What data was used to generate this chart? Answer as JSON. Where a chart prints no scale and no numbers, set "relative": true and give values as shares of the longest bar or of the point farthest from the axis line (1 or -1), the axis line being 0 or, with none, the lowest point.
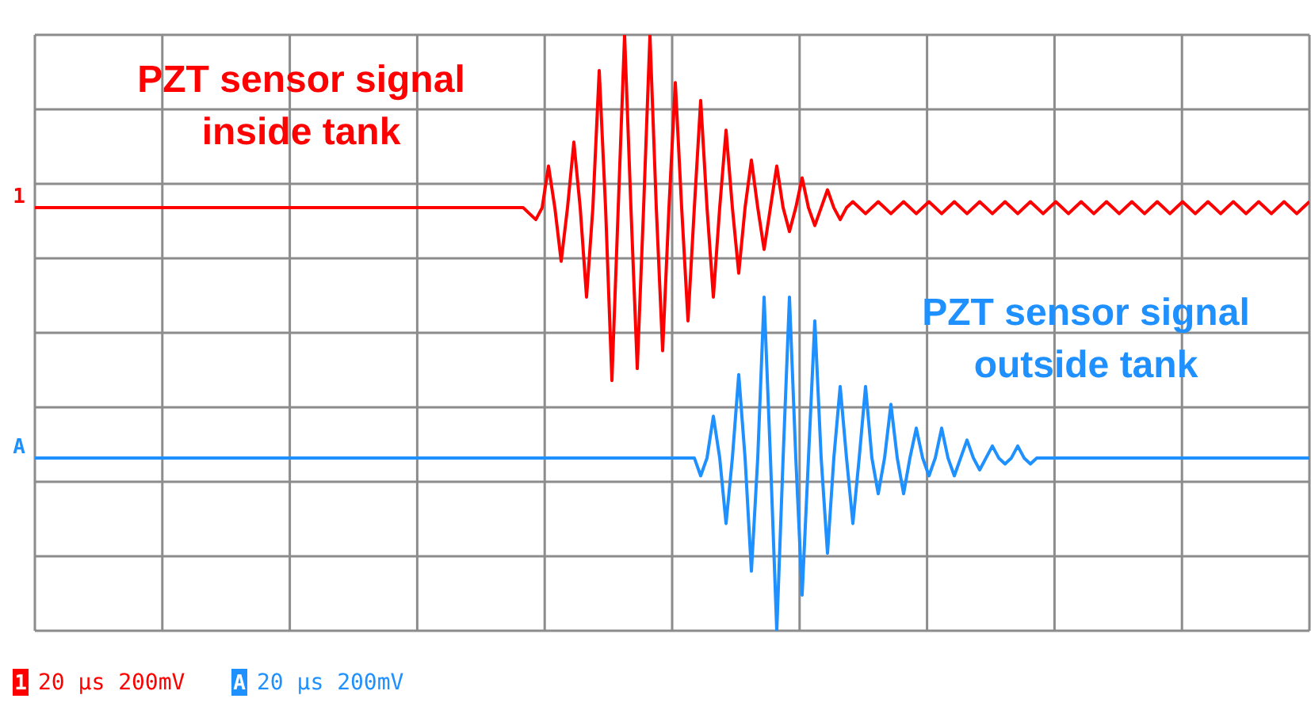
{
  "chart_data": {
    "type": "line",
    "relative": true,
    "grid": true,
    "legend": "left",
    "marker": "none",
    "line_style": "solid",
    "annotations": [
      "PZT sensor signal\ninside tank",
      "PZT sensor signal\noutside tank",
      "20 μs 200mV",
      "20 μs 200mV"
    ],
    "categories": [
      null,
      null,
      null,
      null,
      null,
      null,
      null,
      null,
      null,
      null,
      null,
      null,
      null,
      null,
      null,
      null,
      null,
      null,
      null,
      null,
      null,
      null,
      null,
      null,
      null,
      null,
      null,
      null,
      null,
      null,
      null,
      null,
      null,
      null,
      null,
      null,
      null,
      null,
      null,
      null,
      null,
      null,
      null,
      null,
      null,
      null,
      null,
      null,
      null,
      null,
      null,
      null,
      null,
      null,
      null,
      null,
      null,
      null,
      null,
      null,
      null,
      null,
      null,
      null,
      null,
      null,
      null,
      null,
      null,
      null,
      null,
      null,
      null,
      null,
      null,
      null,
      null,
      null,
      null,
      null,
      null,
      null,
      null,
      null,
      null,
      null,
      null,
      null,
      null,
      null,
      null,
      null,
      null,
      null,
      null,
      null,
      null,
      null,
      null,
      null,
      null,
      null,
      null,
      null,
      null,
      null,
      null,
      null,
      null,
      null,
      null,
      null,
      null,
      null,
      null,
      null,
      null,
      null,
      null,
      null,
      null,
      null,
      null,
      null,
      null,
      null,
      null,
      null,
      null,
      null,
      null,
      null,
      null,
      null,
      null,
      null,
      null,
      null,
      null,
      null,
      null,
      null,
      null,
      null,
      null,
      null,
      null,
      null,
      null,
      null,
      null,
      null,
      null,
      null,
      null,
      null,
      null,
      null,
      null,
      null,
      null,
      null,
      null,
      null,
      null,
      null,
      null,
      null,
      null,
      null,
      null,
      null,
      null,
      null,
      null,
      null,
      null,
      null,
      null,
      null,
      null,
      null,
      null,
      null,
      null,
      null,
      null,
      null,
      null,
      null,
      null,
      null,
      null,
      null,
      null,
      null,
      null,
      null,
      null,
      null,
      null,
      null
    ],
    "series": [
      {
        "name": "1",
        "color": "#ff0000",
        "values": [
          0.71,
          0.71,
          0.71,
          0.71,
          0.71,
          0.71,
          0.71,
          0.71,
          0.71,
          0.71,
          0.71,
          0.71,
          0.71,
          0.71,
          0.71,
          0.71,
          0.71,
          0.71,
          0.71,
          0.71,
          0.71,
          0.71,
          0.71,
          0.71,
          0.71,
          0.71,
          0.71,
          0.71,
          0.71,
          0.71,
          0.71,
          0.71,
          0.71,
          0.71,
          0.71,
          0.71,
          0.71,
          0.71,
          0.71,
          0.71,
          0.71,
          0.71,
          0.71,
          0.71,
          0.71,
          0.71,
          0.71,
          0.71,
          0.71,
          0.71,
          0.71,
          0.71,
          0.71,
          0.71,
          0.71,
          0.71,
          0.71,
          0.71,
          0.71,
          0.71,
          0.71,
          0.71,
          0.71,
          0.71,
          0.71,
          0.71,
          0.71,
          0.71,
          0.71,
          0.71,
          0.71,
          0.71,
          0.71,
          0.71,
          0.71,
          0.71,
          0.71,
          0.71,
          0.7,
          0.69,
          0.71,
          0.78,
          0.71,
          0.62,
          0.71,
          0.82,
          0.71,
          0.56,
          0.71,
          0.94,
          0.71,
          0.42,
          0.71,
          1.0,
          0.71,
          0.44,
          0.71,
          1.0,
          0.71,
          0.47,
          0.71,
          0.92,
          0.71,
          0.52,
          0.71,
          0.89,
          0.71,
          0.56,
          0.71,
          0.84,
          0.71,
          0.6,
          0.71,
          0.79,
          0.71,
          0.64,
          0.71,
          0.78,
          0.71,
          0.67,
          0.71,
          0.76,
          0.71,
          0.68,
          0.71,
          0.74,
          0.71,
          0.69,
          0.71,
          0.72,
          0.71,
          0.7,
          0.71,
          0.72,
          0.71,
          0.7,
          0.71,
          0.72,
          0.71,
          0.7,
          0.71,
          0.72,
          0.71,
          0.7,
          0.71,
          0.72,
          0.71,
          0.7,
          0.71,
          0.72,
          0.71,
          0.7,
          0.71,
          0.72,
          0.71,
          0.7,
          0.71,
          0.72,
          0.71,
          0.7,
          0.71,
          0.72,
          0.71,
          0.7,
          0.71,
          0.72,
          0.71,
          0.7,
          0.71,
          0.72,
          0.71,
          0.7,
          0.71,
          0.72,
          0.71,
          0.7,
          0.71,
          0.72,
          0.71,
          0.7,
          0.71,
          0.72,
          0.71,
          0.7,
          0.71,
          0.72,
          0.71,
          0.7,
          0.71,
          0.72,
          0.71,
          0.7,
          0.71,
          0.72,
          0.71,
          0.7,
          0.71,
          0.72,
          0.71,
          0.7,
          0.71,
          0.72
        ]
      },
      {
        "name": "A",
        "color": "#1e90ff",
        "values": [
          0.29,
          0.29,
          0.29,
          0.29,
          0.29,
          0.29,
          0.29,
          0.29,
          0.29,
          0.29,
          0.29,
          0.29,
          0.29,
          0.29,
          0.29,
          0.29,
          0.29,
          0.29,
          0.29,
          0.29,
          0.29,
          0.29,
          0.29,
          0.29,
          0.29,
          0.29,
          0.29,
          0.29,
          0.29,
          0.29,
          0.29,
          0.29,
          0.29,
          0.29,
          0.29,
          0.29,
          0.29,
          0.29,
          0.29,
          0.29,
          0.29,
          0.29,
          0.29,
          0.29,
          0.29,
          0.29,
          0.29,
          0.29,
          0.29,
          0.29,
          0.29,
          0.29,
          0.29,
          0.29,
          0.29,
          0.29,
          0.29,
          0.29,
          0.29,
          0.29,
          0.29,
          0.29,
          0.29,
          0.29,
          0.29,
          0.29,
          0.29,
          0.29,
          0.29,
          0.29,
          0.29,
          0.29,
          0.29,
          0.29,
          0.29,
          0.29,
          0.29,
          0.29,
          0.29,
          0.29,
          0.29,
          0.29,
          0.29,
          0.29,
          0.29,
          0.29,
          0.29,
          0.29,
          0.29,
          0.29,
          0.29,
          0.29,
          0.29,
          0.29,
          0.29,
          0.29,
          0.29,
          0.29,
          0.29,
          0.29,
          0.29,
          0.29,
          0.29,
          0.29,
          0.29,
          0.26,
          0.29,
          0.36,
          0.29,
          0.18,
          0.29,
          0.43,
          0.29,
          0.1,
          0.29,
          0.56,
          0.29,
          0,
          0.29,
          0.56,
          0.29,
          0.06,
          0.29,
          0.52,
          0.29,
          0.13,
          0.29,
          0.41,
          0.29,
          0.18,
          0.29,
          0.41,
          0.29,
          0.23,
          0.29,
          0.38,
          0.29,
          0.23,
          0.29,
          0.34,
          0.29,
          0.26,
          0.29,
          0.34,
          0.29,
          0.26,
          0.29,
          0.32,
          0.29,
          0.27,
          0.29,
          0.31,
          0.29,
          0.28,
          0.29,
          0.31,
          0.29,
          0.28,
          0.29,
          0.29,
          0.29,
          0.29,
          0.29,
          0.29,
          0.29,
          0.29,
          0.29,
          0.29,
          0.29,
          0.29,
          0.29,
          0.29,
          0.29,
          0.29,
          0.29,
          0.29,
          0.29,
          0.29,
          0.29,
          0.29,
          0.29,
          0.29,
          0.29,
          0.29,
          0.29,
          0.29,
          0.29,
          0.29,
          0.29,
          0.29,
          0.29,
          0.29,
          0.29,
          0.29,
          0.29,
          0.29,
          0.29,
          0.29,
          0.29,
          0.29,
          0.29,
          0.29
        ]
      }
    ]
  }
}
